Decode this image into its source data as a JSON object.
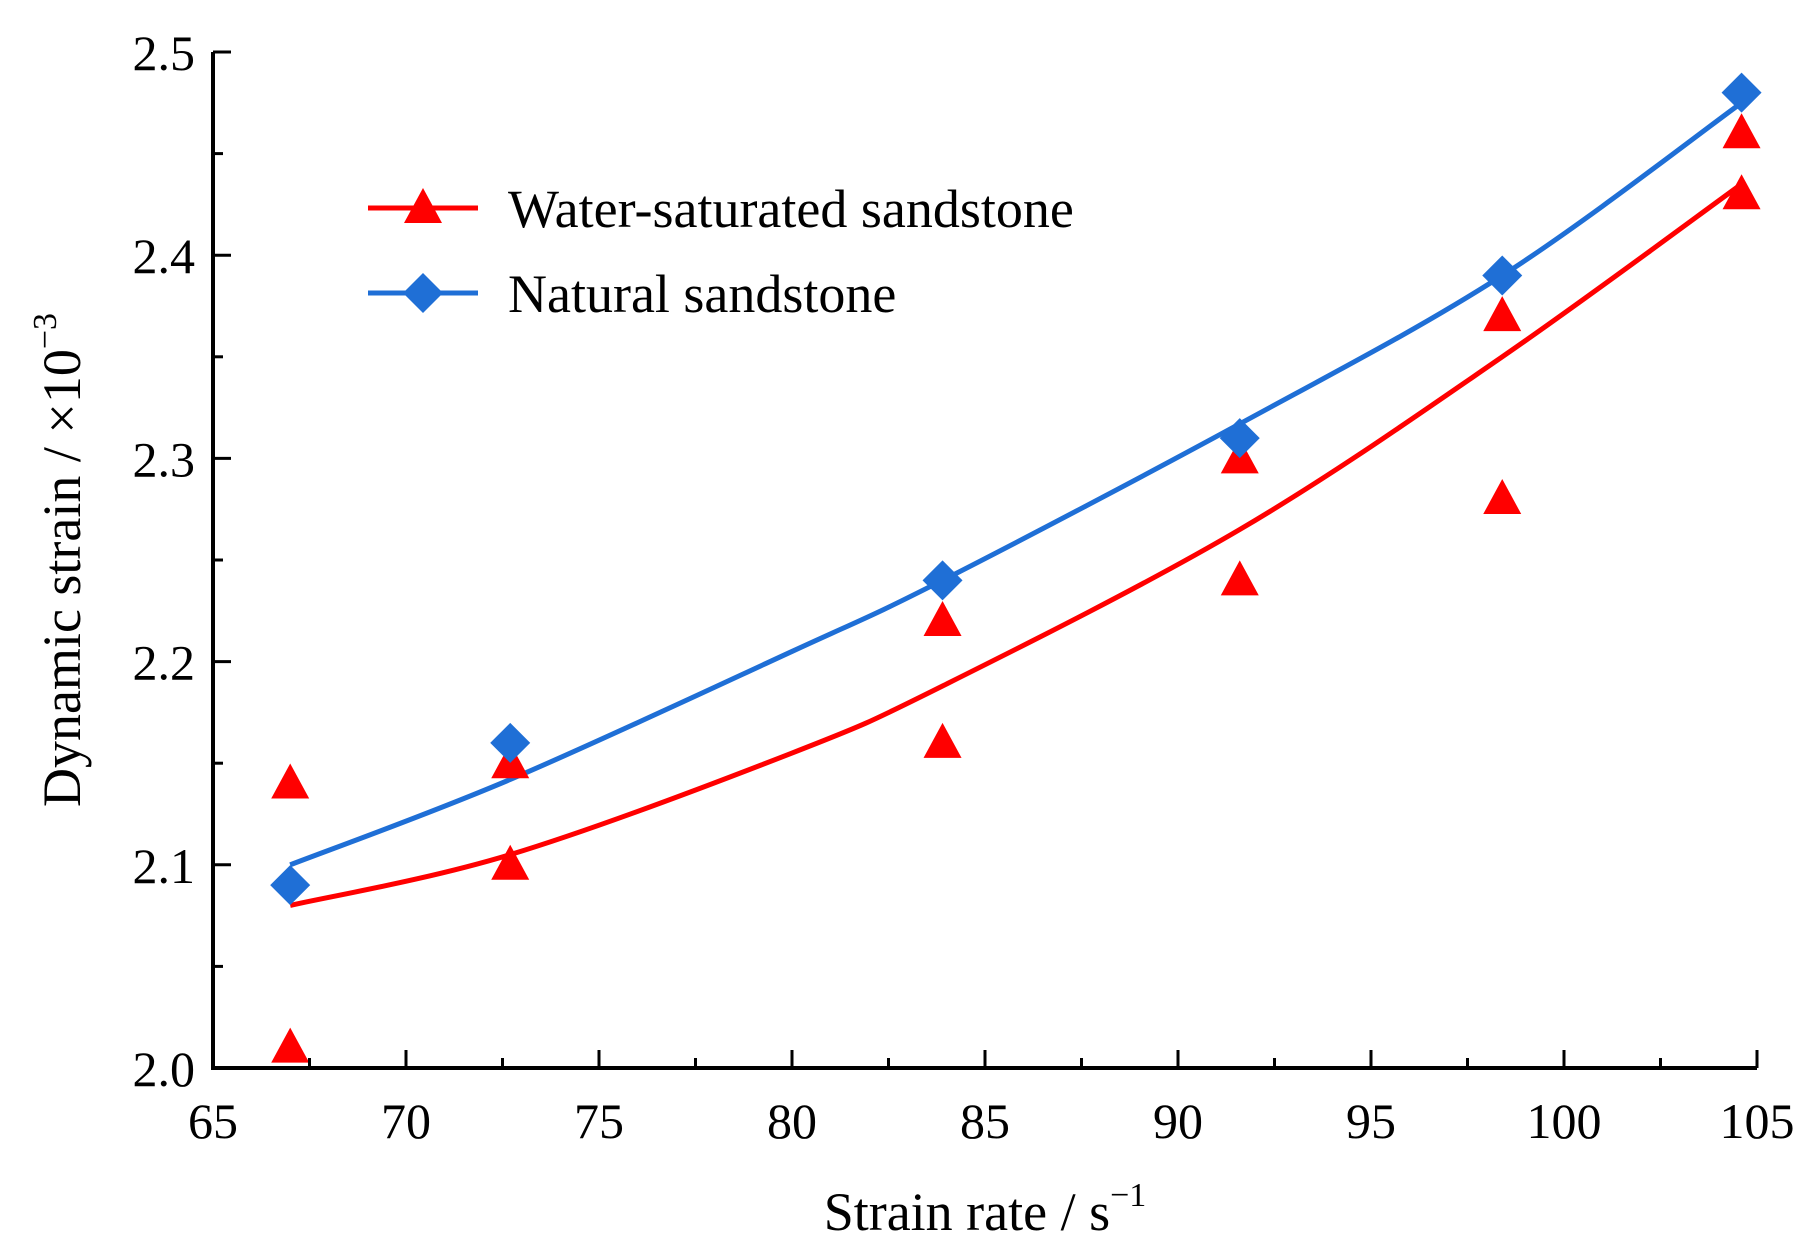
{
  "chart_data": {
    "type": "scatter",
    "xlabel": "Strain rate / s",
    "xlabel_sup": "−1",
    "ylabel": "Dynamic strain / ×10",
    "ylabel_sup": "−3",
    "xlim": [
      65,
      105
    ],
    "ylim": [
      2.0,
      2.5
    ],
    "x_ticks": [
      65,
      70,
      75,
      80,
      85,
      90,
      95,
      100,
      105
    ],
    "x_tick_labels": [
      "65",
      "70",
      "75",
      "80",
      "85",
      "90",
      "95",
      "100",
      "105"
    ],
    "y_ticks": [
      2.0,
      2.1,
      2.2,
      2.3,
      2.4,
      2.5
    ],
    "y_tick_labels": [
      "2.0",
      "2.1",
      "2.2",
      "2.3",
      "2.4",
      "2.5"
    ],
    "grid": false,
    "legend_position": "top-left",
    "series": [
      {
        "name": "Water-saturated sandstone",
        "color": "#ff0000",
        "marker": "triangle",
        "points": [
          {
            "x": 67.0,
            "y": 2.01
          },
          {
            "x": 67.0,
            "y": 2.14
          },
          {
            "x": 72.7,
            "y": 2.1
          },
          {
            "x": 72.7,
            "y": 2.15
          },
          {
            "x": 83.9,
            "y": 2.16
          },
          {
            "x": 83.9,
            "y": 2.22
          },
          {
            "x": 91.6,
            "y": 2.24
          },
          {
            "x": 91.6,
            "y": 2.3
          },
          {
            "x": 98.4,
            "y": 2.28
          },
          {
            "x": 98.4,
            "y": 2.37
          },
          {
            "x": 104.6,
            "y": 2.43
          },
          {
            "x": 104.6,
            "y": 2.46
          }
        ],
        "fit_curve": {
          "x": [
            67.0,
            72.7,
            80.0,
            83.9,
            91.6,
            98.4,
            104.6
          ],
          "y": [
            2.08,
            2.105,
            2.155,
            2.188,
            2.265,
            2.35,
            2.435
          ]
        }
      },
      {
        "name": "Natural sandstone",
        "color": "#1f6fd6",
        "marker": "diamond",
        "points": [
          {
            "x": 67.0,
            "y": 2.09
          },
          {
            "x": 72.7,
            "y": 2.16
          },
          {
            "x": 83.9,
            "y": 2.24
          },
          {
            "x": 91.6,
            "y": 2.31
          },
          {
            "x": 98.4,
            "y": 2.39
          },
          {
            "x": 104.6,
            "y": 2.48
          }
        ],
        "fit_curve": {
          "x": [
            67.0,
            72.7,
            80.0,
            83.9,
            91.6,
            98.4,
            104.6
          ],
          "y": [
            2.1,
            2.142,
            2.205,
            2.24,
            2.317,
            2.39,
            2.475
          ]
        }
      }
    ]
  }
}
